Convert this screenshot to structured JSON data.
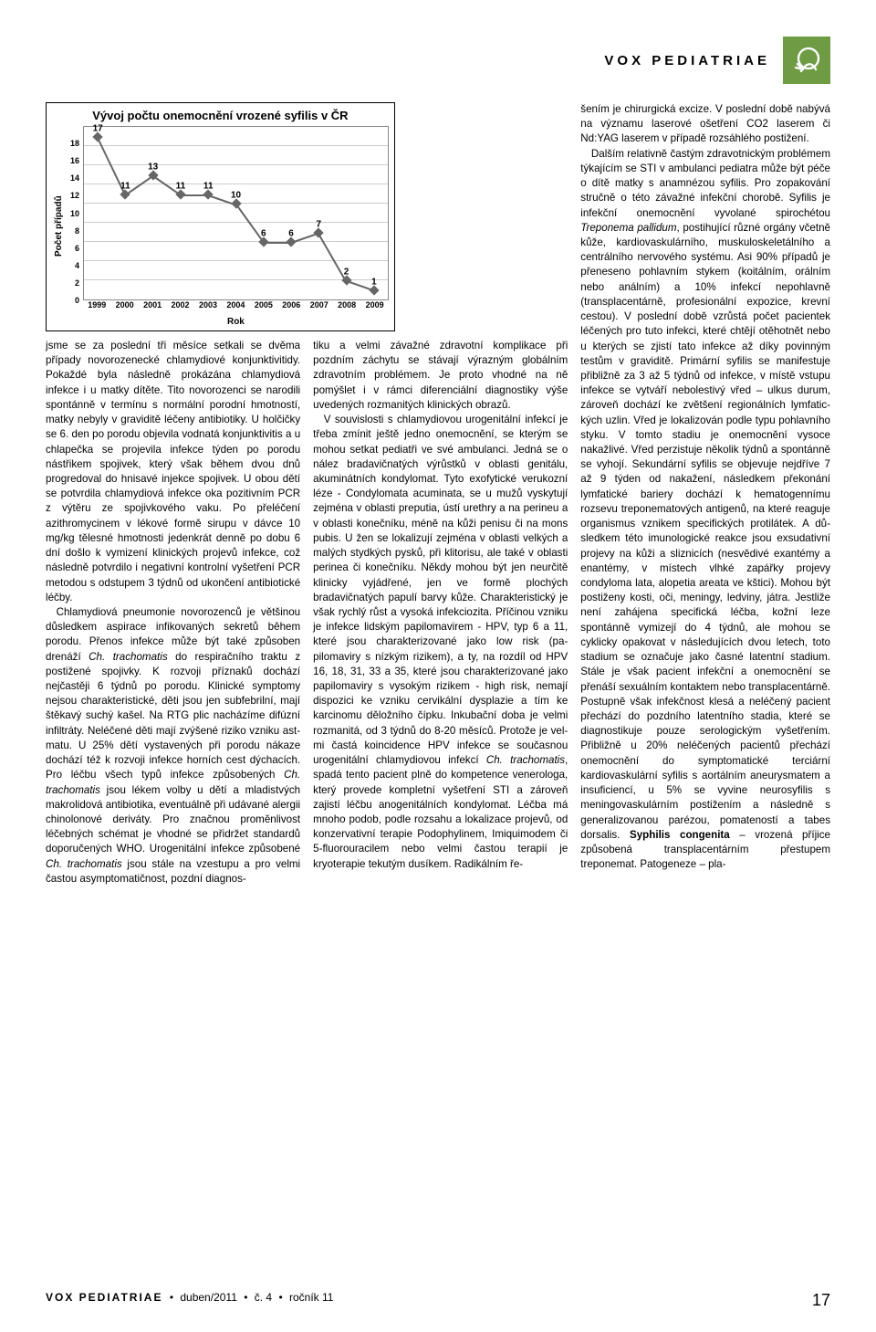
{
  "header": {
    "title": "VOX PEDIATRIAE"
  },
  "footer": {
    "journal": "VOX PEDIATRIAE",
    "month": "duben/2011",
    "issue": "č. 4",
    "volume": "ročník 11",
    "page": "17"
  },
  "chart": {
    "type": "line",
    "title": "Vývoj počtu onemocnění vrozené syfilis v ČR",
    "xlabel": "Rok",
    "ylabel": "Počet případů",
    "x": [
      "1999",
      "2000",
      "2001",
      "2002",
      "2003",
      "2004",
      "2005",
      "2006",
      "2007",
      "2008",
      "2009"
    ],
    "y": [
      17,
      11,
      13,
      11,
      11,
      10,
      6,
      6,
      7,
      2,
      1
    ],
    "ylim": [
      0,
      18
    ],
    "ytick_step": 2,
    "line_color": "#666666",
    "marker": "diamond",
    "marker_color": "#666666",
    "marker_size": 8,
    "grid_color": "#cccccc",
    "background": "#ffffff",
    "border_color": "#888888",
    "label_fontsize": 10,
    "tick_fontsize": 9,
    "title_fontsize": 13,
    "datalabel_fontsize": 10
  },
  "columns": {
    "c1": "jsme se za poslední tři měsíce setkali se dvě­ma případy novorozenecké chlamydiové kon­junktivitidy. Pokaždé byla následně prokázá­na chlamydiová infekce i u matky dítěte. Tito novorozenci se narodili spontánně v termínu s normální porodní hmotností, matky neby­ly v graviditě léčeny antibiotiky. U holčičky se 6. den po porodu objevila vodnatá konjunkti­vitis a u chlapečka se projevila infekce týden po porodu nástřikem spojivek, který však bě­hem dvou dnů progredoval do hnisavé injekce spojivek. U obou dětí se potvrdila chlamydio­vá infekce oka pozitivním PCR z výtěru ze spo­jivkového vaku. Po přeléčení azithromycinem v lékové formě sirupu v dávce 10 mg/kg tě­lesné hmotnosti jedenkrát denně po dobu 6 dní došlo k vymizení klinických projevů infek­ce, což následně potvrdilo i negativní kontrol­ní vyšetření PCR metodou s odstupem 3 týd­nů od ukončení antibiotické léčby.",
    "c1b": "Chlamydiová pneumonie novorozenců je většinou důsledkem aspirace infikovaných se­kretů během porodu. Přenos infekce může být také způsoben drenáží <em>Ch. trachomatis</em> do re­spiračního traktu z postižené spojivky. K rozvo­ji příznaků dochází nejčastěji 6 týdnů po poro­du. Klinické symptomy nejsou charakteristic­ké, děti jsou jen subfebrilní, mají štěkavý suchý kašel. Na RTG plic nacházíme difúzní infiltrá­ty. Neléčené děti mají zvýšené riziko vzniku ast­matu. U 25% dětí vystavených při porodu ná­kaze dochází též k rozvoji infekce horních cest dýchacích. Pro léčbu všech typů infekce způso­bených <em>Ch. trachomatis</em> jsou lékem volby u dě­tí a mladistvých makrolidová antibiotika, even­tuálně při udávané alergii chinolonové derivá­ty. Pro značnou proměnlivost léčebných sché­mat je vhodné se přidržet standardů doporuče­ných WHO. Urogenitální infekce způsobené <em>Ch. trachomatis</em> jsou stále na vzestupu a pro vel­mi častou asymptomatičnost, pozdní diagnos-",
    "c2": "tiku a velmi závažné zdravotní komplikace při pozdním záchytu se stávají výrazným globálním zdravotním problémem. Je proto vhodné na ně pomýšlet i v rámci diferenciální diagnostiky vý­še uvedených rozmanitých klinických obrazů.",
    "c2b": "V souvislosti s chlamydiovou urogenitál­ní infekcí je třeba zmínit ještě jedno one­mocnění, se kterým se mohou setkat pediat­ři ve své ambulanci. Jedná se o nález brada­vičnatých výrůstků v oblasti genitálu, akumi­nátních kondylomat. Tyto exofytické verukoz­ní léze - Condylomata acuminata, se u mu­žů vyskytují zejména v oblasti preputia, ús­tí urethry a na perineu a v oblasti konečníku, méně na kůži penisu či na mons pubis. U žen se lokalizují zejména v oblasti velkých a ma­lých stydkých pysků, při klitorisu, ale také v oblasti perinea či konečníku. Někdy mohou být jen neurčitě klinicky vyjádřené, jen ve for­mě plochých bradavičnatých papulí barvy ků­že. Charakteristický je však rychlý růst a vyso­ká infekciozita. Příčinou vzniku je infekce lid­ským papilomavirem - HPV, typ 6 a 11, kte­ré jsou charakterizované jako low risk (pa­pilomaviry s nízkým rizikem), a ty, na rozdíl od HPV 16, 18, 31, 33 a 35, které jsou cha­rakterizované jako papilomaviry s vysokým ri­zikem - high risk, nemají dispozici ke vzniku cervikální dysplazie a tím ke karcinomu dělož­ního čípku. Inkubační doba je velmi rozmani­tá, od 3 týdnů do 8-20 měsíců. Protože je vel­mi častá koincidence HPV infekce se součas­nou urogenitální chlamydiovou infekcí <em>Ch. tra­chomatis</em>, spadá tento pacient plně do kom­petence venerologa, který provede kompletní vyšetření STI a zároveň zajistí léčbu anogeni­tálních kondylomat. Léčba má mnoho podob, podle rozsahu a lokalizace projevů, od konzer­vativní terapie Podophylinem, Imiquimodem či 5-fluorouracilem nebo velmi častou terapií je kryoterapie tekutým dusíkem. Radikálním ře-",
    "c3": "šením je chirurgická excize. V poslední době nabývá na významu laserové ošetření CO2 la­serem či Nd:YAG laserem v případě rozsáhlé­ho postižení.",
    "c3b": "Dalším relativně častým zdravotnickým pro­blémem týkajícím se STI v ambulanci pediatra může být péče o dítě matky s anamnézou sy­filis. Pro zopakování stručně o této závažné in­fekční chorobě. Syfilis je infekční onemocně­ní vyvolané spirochétou <em>Treponema pallidum</em>, postihující různé orgány včetně kůže, kardio­vaskulárního, muskuloskeletálního a centrál­ního nervového systému. Asi 90% případů je přeneseno pohlavním stykem (koitálním, orál­ním nebo análním) a 10% infekcí nepohlav­ně (transplacentárně, profesionální expozice, krevní cestou). V poslední době vzrůstá po­čet pacientek léčených pro tuto infekci, kte­ré chtějí otěhotnět nebo u kterých se zjistí ta­to infekce až díky povinným testům v graviditě. Primární syfilis se manifestuje přibližně za 3 až 5 týdnů od infekce, v místě vstupu infekce se vytváří nebolestivý vřed – ulkus durum, záro­veň dochází ke zvětšení regionálních lymfatic­kých uzlin. Vřed je lokalizován podle typu po­hlavního styku. V tomto stadiu je onemocně­ní vysoce nakažlivé. Vřed perzistuje několik týdnů a spontánně se vyhojí. Sekundární sy­filis se objevuje nejdříve 7 až 9 týden od na­kažení, následkem překonání lymfatické ba­riery dochází k hematogennímu rozsevu trepo­nematových antigenů, na které reaguje orga­nismus vznikem specifických protilátek. A dů­sledkem této imunologické reakce jsou exsu­dativní projevy na kůži a sliznicích (nesvědi­vé exantémy a enantémy, v místech vlhké za­pářky projevy condyloma lata, alopetia area­ta ve kštici). Mohou být postiženy kosti, oči, meningy, ledviny, játra. Jestliže není zahájena specifická léčba, kožní leze spontánně vymize­jí do 4 týdnů, ale mohou se cyklicky opakovat v následujících dvou letech, toto stadium se označuje jako časné latentní stadium. Stále je však pacient infekční a onemocnění se přená­ší sexuálním kontaktem nebo transplacentár­ně. Postupně však infekčnost klesá a neléčený pacient přechází do pozdního latentního sta­dia, které se diagnostikuje pouze serologickým vyšetřením. Přibližně u 20% neléčených paci­entů přechází onemocnění do symptomatické terciární kardiovaskulární syfilis s aortálním aneurysmatem a insuficiencí, u 5% se vyvine neurosyfilis s meningovaskulárním postižením a následně s generalizovanou parézou, po­mateností a tabes dorsalis. <span class=\"b\">Syphilis congeni­ta</span> – vrozená příjice způsobená transplacentár­ním přestupem treponemat. Patogeneze – pla-"
  }
}
